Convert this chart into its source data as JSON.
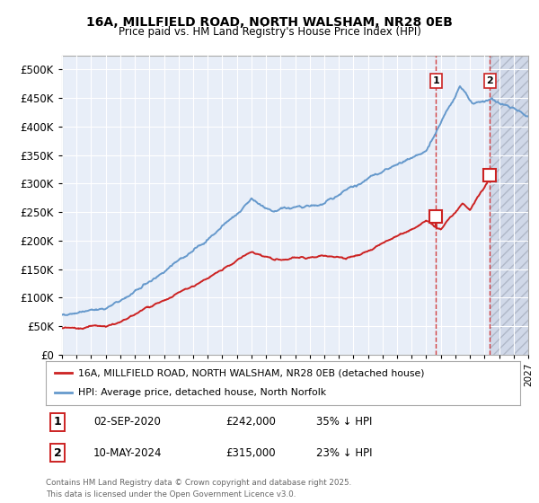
{
  "title_line1": "16A, MILLFIELD ROAD, NORTH WALSHAM, NR28 0EB",
  "title_line2": "Price paid vs. HM Land Registry's House Price Index (HPI)",
  "background_color": "#ffffff",
  "plot_bg_color": "#e8eef8",
  "hatch_bg_color": "#d8e0ee",
  "grid_color": "#ffffff",
  "hpi_color": "#6699cc",
  "price_color": "#cc2222",
  "sale1_date": "02-SEP-2020",
  "sale1_price": "£242,000",
  "sale1_pct": "35% ↓ HPI",
  "sale2_date": "10-MAY-2024",
  "sale2_price": "£315,000",
  "sale2_pct": "23% ↓ HPI",
  "legend_label1": "16A, MILLFIELD ROAD, NORTH WALSHAM, NR28 0EB (detached house)",
  "legend_label2": "HPI: Average price, detached house, North Norfolk",
  "footer": "Contains HM Land Registry data © Crown copyright and database right 2025.\nThis data is licensed under the Open Government Licence v3.0.",
  "ylim_max": 525000,
  "xlim_start": 1995.0,
  "xlim_end": 2027.0,
  "sale1_x": 2020.67,
  "sale1_y": 242000,
  "sale2_x": 2024.36,
  "sale2_y": 315000,
  "vline1_x": 2020.67,
  "vline2_x": 2024.36,
  "hatch_start": 2024.36,
  "yticks": [
    0,
    50000,
    100000,
    150000,
    200000,
    250000,
    300000,
    350000,
    400000,
    450000,
    500000
  ]
}
